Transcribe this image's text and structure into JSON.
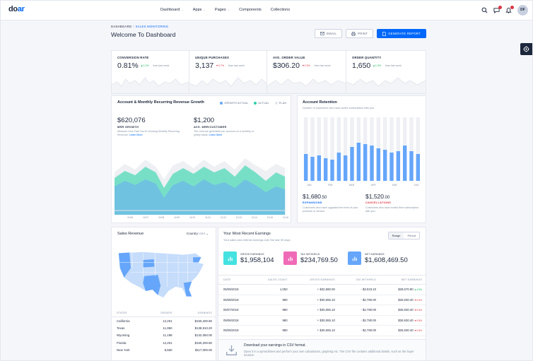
{
  "brand": {
    "logo_main": "do",
    "logo_accent": "ar"
  },
  "nav": [
    {
      "label": "Dashboard",
      "has_menu": true
    },
    {
      "label": "Apps",
      "has_menu": true
    },
    {
      "label": "Pages",
      "has_menu": true
    },
    {
      "label": "Components",
      "has_menu": false
    },
    {
      "label": "Collections",
      "has_menu": false
    }
  ],
  "header": {
    "avatar_initials": "DF",
    "messages_badge": "",
    "notifications_badge": ""
  },
  "breadcrumb": {
    "root": "DASHBOARD",
    "separator": "/",
    "current": "SALES MONITORING"
  },
  "page_title": "Welcome To Dashboard",
  "actions": {
    "email": "EMAIL",
    "print": "PRINT",
    "generate": "GENERATE REPORT"
  },
  "stats": [
    {
      "label": "CONVERSION RATE",
      "value": "0.81%",
      "change": "1.2%",
      "direction": "up",
      "note": "than last week"
    },
    {
      "label": "UNIQUE PURCHASES",
      "value": "3,137",
      "change": "0.7%",
      "direction": "down",
      "note": "than last week"
    },
    {
      "label": "AVG. ORDER VALUE",
      "value": "$306.20",
      "change": "0.3%",
      "direction": "down",
      "note": "than last week"
    },
    {
      "label": "ORDER QUANTITY",
      "value": "1,650",
      "change": "1.3%",
      "direction": "up",
      "note": "than last week"
    }
  ],
  "revenue": {
    "title": "Account & Monthly Recurring Revenue Growth",
    "legend": [
      {
        "label": "GROWTH ACTUAL",
        "color": "#65a6fa"
      },
      {
        "label": "ACTUAL",
        "color": "#2ad3a8"
      },
      {
        "label": "PLAN",
        "color": "#e3e7ed"
      }
    ],
    "mrr_value": "$620,076",
    "mrr_label": "MRR GROWTH",
    "mrr_desc": "Measure How Fast You're Growing Monthly Recurring Revenue.",
    "mrr_link": "Learn More",
    "avg_value": "$1,200",
    "avg_label": "AVG. MRR/CUSTOMER",
    "avg_desc": "The revenue generated per account on a monthly or yearly basis.",
    "avg_link": "Learn More",
    "x_labels": [
      "11/06",
      "11/07",
      "11/08",
      "11/09",
      "11/10",
      "11/11",
      "11/12",
      "11/13",
      "11/14",
      "11/15",
      "11/16"
    ]
  },
  "retention": {
    "title": "Account Retention",
    "subtitle": "Number of customers who have active subscription with you.",
    "months": [
      "JAN",
      "FEB",
      "MAR",
      "APR",
      "MAY",
      "JUN"
    ],
    "expansions_value": "$1,680",
    "expansions_cents": ".50",
    "expansions_label": "EXPANSIONS",
    "expansions_desc": "Customers who have upgraded the level of your products or service.",
    "cancel_value": "$1,520",
    "cancel_cents": ".00",
    "cancel_label": "CANCELLATIONS",
    "cancel_desc": "Customers who have ended their subscription with you."
  },
  "sales_revenue": {
    "title": "Sales Revenue",
    "country_label": "Country",
    "country_value": "USA",
    "columns": [
      "STATES",
      "ORDERS",
      "EARNINGS"
    ],
    "rows": [
      {
        "state": "California",
        "orders": "12,201",
        "earnings": "$150,200.80"
      },
      {
        "state": "Texas",
        "orders": "11,950",
        "earnings": "$138,910.20"
      },
      {
        "state": "Wyoming",
        "orders": "11,198",
        "earnings": "$132,050.00"
      },
      {
        "state": "Florida",
        "orders": "12,201",
        "earnings": "$150,200.80"
      },
      {
        "state": "New York",
        "orders": "8,560",
        "earnings": "$117,000.00"
      }
    ]
  },
  "earnings": {
    "title": "Your Most Recent Earnings",
    "subtitle": "Your sales and referral earnings over the last 30 days",
    "range_options": [
      "Range",
      "Period"
    ],
    "kpis": [
      {
        "label": "GROSS EARNINGS",
        "value": "$1,958,104",
        "color": "#44e2e0"
      },
      {
        "label": "TAX WITHHELD",
        "value": "$234,769.50",
        "color": "#f06bb7"
      },
      {
        "label": "NET EARNINGS",
        "value": "$1,608,469.50",
        "color": "#65a6fa"
      }
    ],
    "columns": [
      "DATE",
      "SALES COUNT",
      "GROSS EARNINGS",
      "TAX WITHHELD",
      "NET EARNINGS"
    ],
    "rows": [
      {
        "date": "05/09/2019",
        "count": "1,050",
        "gross": "+ $32,580.00",
        "tax": "- $3,023.10",
        "net": "$28,670.90",
        "pct": "4.5%",
        "dir": "up"
      },
      {
        "date": "05/08/2019",
        "count": "980",
        "gross": "+ $30,065.10",
        "tax": "- $2,780.00",
        "net": "$26,930.40",
        "pct": "0.8%",
        "dir": "down"
      },
      {
        "date": "05/07/2019",
        "count": "980",
        "gross": "+ $30,065.10",
        "tax": "- $2,780.00",
        "net": "$26,930.40",
        "pct": "0.8%",
        "dir": "down"
      },
      {
        "date": "05/06/2019",
        "count": "980",
        "gross": "+ $30,065.10",
        "tax": "- $2,780.00",
        "net": "$26,930.40",
        "pct": "0.8%",
        "dir": "down"
      },
      {
        "date": "05/05/2019",
        "count": "980",
        "gross": "+ $30,065.10",
        "tax": "- $2,780.00",
        "net": "$26,930.40",
        "pct": "0.8%",
        "dir": "down"
      },
      {
        "date": "05/04/2019",
        "count": "980",
        "gross": "+ $30,065.10",
        "tax": "- $2,780.00",
        "net": "$26,930.40",
        "pct": "0.8%",
        "dir": "down"
      }
    ]
  },
  "download": {
    "title": "Download your earnings in CSV format.",
    "desc": "Open it in a spreadsheet and perform your own calculations, graphing etc. The CSV file contains additional details, such as the buyer location."
  }
}
